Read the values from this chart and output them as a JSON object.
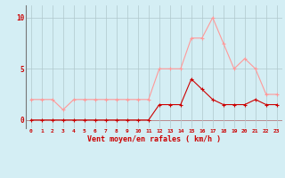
{
  "x": [
    0,
    1,
    2,
    3,
    4,
    5,
    6,
    7,
    8,
    9,
    10,
    11,
    12,
    13,
    14,
    15,
    16,
    17,
    18,
    19,
    20,
    21,
    22,
    23
  ],
  "y_mean": [
    0,
    0,
    0,
    0,
    0,
    0,
    0,
    0,
    0,
    0,
    0,
    0,
    1.5,
    1.5,
    1.5,
    4,
    3,
    2,
    1.5,
    1.5,
    1.5,
    2,
    1.5,
    1.5
  ],
  "y_gust": [
    2,
    2,
    2,
    1,
    2,
    2,
    2,
    2,
    2,
    2,
    2,
    2,
    5,
    5,
    5,
    8,
    8,
    10,
    7.5,
    5,
    6,
    5,
    2.5,
    2.5
  ],
  "mean_color": "#cc0000",
  "gust_color": "#ff9999",
  "bg_color": "#d4eef4",
  "grid_color": "#b0c8cc",
  "xlabel": "Vent moyen/en rafales ( km/h )",
  "yticks": [
    0,
    5,
    10
  ],
  "ylim": [
    -0.8,
    11.2
  ],
  "xlim": [
    -0.5,
    23.5
  ],
  "linewidth": 0.8,
  "markersize": 3,
  "markeredgewidth": 0.8
}
